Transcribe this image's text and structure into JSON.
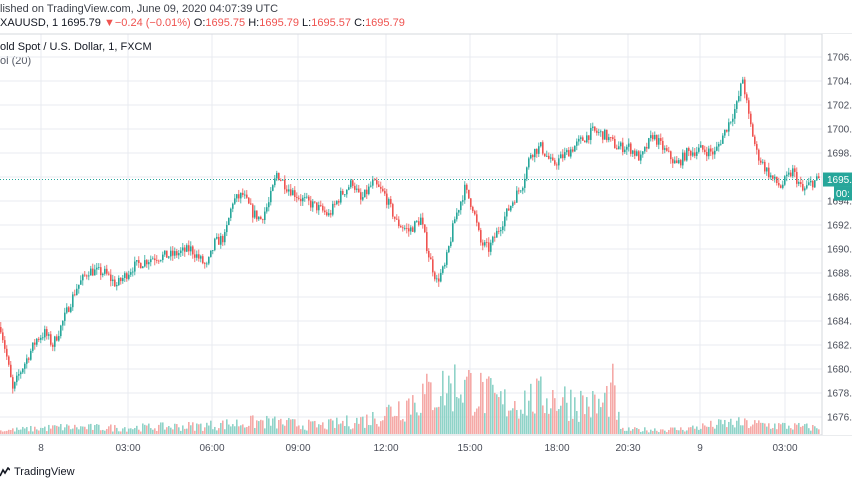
{
  "header": {
    "publish_text": "lished on TradingView.com, June 09, 2020 04:07:39 UTC",
    "symbol": "XAUUSD, 1",
    "price": "1695.79",
    "change_arrow": "▼",
    "change": "−0.24 (−0.01%)",
    "open_label": "O:",
    "open": "1695.75",
    "high_label": "H:",
    "high": "1695.79",
    "low_label": "L:",
    "low": "1695.57",
    "close_label": "C:",
    "close": "1695.79",
    "title": "old Spot / U.S. Dollar, 1, FXCM",
    "volume_label": "ol (20)"
  },
  "footer": {
    "brand": "TradingView",
    "logo_icon": "tradingview-logo-icon"
  },
  "colors": {
    "up": "#26a69a",
    "down": "#ef5350",
    "up_volume": "#8fd3c8",
    "down_volume": "#f5a9a7",
    "grid": "#e9ebf0",
    "price_line": "#26a69a"
  },
  "chart_data": {
    "type": "candlestick",
    "symbol": "XAUUSD",
    "interval": "1",
    "x_tick_labels": [
      "8",
      "03:00",
      "06:00",
      "09:00",
      "12:00",
      "15:00",
      "18:00",
      "20:30",
      "9",
      "03:00"
    ],
    "y_tick_labels": [
      "1676.00",
      "1678.00",
      "1680.00",
      "1682.00",
      "1684.00",
      "1686.00",
      "1688.00",
      "1690.00",
      "1692.00",
      "1694.00",
      "1696.00",
      "1698.00",
      "1700.00",
      "1702.00",
      "1704.00",
      "1706.00"
    ],
    "y_tick_values": [
      1676,
      1678,
      1680,
      1682,
      1684,
      1686,
      1688,
      1690,
      1692,
      1694,
      1696,
      1698,
      1700,
      1702,
      1704,
      1706
    ],
    "ylim": [
      1675,
      1707
    ],
    "last_price": 1695.79,
    "last_price_label": "1695.",
    "countdown_label": "00:",
    "price_path": [
      {
        "t": 0,
        "p": 1683.5
      },
      {
        "t": 3,
        "p": 1681.0
      },
      {
        "t": 6,
        "p": 1678.2
      },
      {
        "t": 9,
        "p": 1679.5
      },
      {
        "t": 12,
        "p": 1680.5
      },
      {
        "t": 18,
        "p": 1682.5
      },
      {
        "t": 22,
        "p": 1683.0
      },
      {
        "t": 26,
        "p": 1682.0
      },
      {
        "t": 30,
        "p": 1683.5
      },
      {
        "t": 34,
        "p": 1685.2
      },
      {
        "t": 38,
        "p": 1686.8
      },
      {
        "t": 44,
        "p": 1688.2
      },
      {
        "t": 52,
        "p": 1688.0
      },
      {
        "t": 58,
        "p": 1687.0
      },
      {
        "t": 66,
        "p": 1688.5
      },
      {
        "t": 76,
        "p": 1689.3
      },
      {
        "t": 86,
        "p": 1689.5
      },
      {
        "t": 95,
        "p": 1690.0
      },
      {
        "t": 103,
        "p": 1688.5
      },
      {
        "t": 107,
        "p": 1690.5
      },
      {
        "t": 112,
        "p": 1691.0
      },
      {
        "t": 116,
        "p": 1694.0
      },
      {
        "t": 121,
        "p": 1694.5
      },
      {
        "t": 126,
        "p": 1693.0
      },
      {
        "t": 130,
        "p": 1692.5
      },
      {
        "t": 134,
        "p": 1693.8
      },
      {
        "t": 138,
        "p": 1696.3
      },
      {
        "t": 143,
        "p": 1695.2
      },
      {
        "t": 150,
        "p": 1694.2
      },
      {
        "t": 158,
        "p": 1693.5
      },
      {
        "t": 164,
        "p": 1692.8
      },
      {
        "t": 170,
        "p": 1694.5
      },
      {
        "t": 176,
        "p": 1695.6
      },
      {
        "t": 180,
        "p": 1694.0
      },
      {
        "t": 186,
        "p": 1695.5
      },
      {
        "t": 192,
        "p": 1694.5
      },
      {
        "t": 198,
        "p": 1692.2
      },
      {
        "t": 204,
        "p": 1691.5
      },
      {
        "t": 210,
        "p": 1692.5
      },
      {
        "t": 214,
        "p": 1689.5
      },
      {
        "t": 218,
        "p": 1687.3
      },
      {
        "t": 222,
        "p": 1688.5
      },
      {
        "t": 227,
        "p": 1692.5
      },
      {
        "t": 232,
        "p": 1695.0
      },
      {
        "t": 236,
        "p": 1693.5
      },
      {
        "t": 240,
        "p": 1690.5
      },
      {
        "t": 244,
        "p": 1690.0
      },
      {
        "t": 250,
        "p": 1692.0
      },
      {
        "t": 256,
        "p": 1694.0
      },
      {
        "t": 261,
        "p": 1695.5
      },
      {
        "t": 265,
        "p": 1698.0
      },
      {
        "t": 270,
        "p": 1698.5
      },
      {
        "t": 276,
        "p": 1697.0
      },
      {
        "t": 283,
        "p": 1698.0
      },
      {
        "t": 290,
        "p": 1699.0
      },
      {
        "t": 296,
        "p": 1699.8
      },
      {
        "t": 302,
        "p": 1699.5
      },
      {
        "t": 308,
        "p": 1698.5
      },
      {
        "t": 314,
        "p": 1698.5
      },
      {
        "t": 320,
        "p": 1697.5
      },
      {
        "t": 326,
        "p": 1699.5
      },
      {
        "t": 332,
        "p": 1698.2
      },
      {
        "t": 338,
        "p": 1697.0
      },
      {
        "t": 343,
        "p": 1698.0
      },
      {
        "t": 350,
        "p": 1698.3
      },
      {
        "t": 357,
        "p": 1698.0
      },
      {
        "t": 364,
        "p": 1700.5
      },
      {
        "t": 368,
        "p": 1702.0
      },
      {
        "t": 371,
        "p": 1704.2
      },
      {
        "t": 374,
        "p": 1701.0
      },
      {
        "t": 378,
        "p": 1698.0
      },
      {
        "t": 382,
        "p": 1696.8
      },
      {
        "t": 386,
        "p": 1695.8
      },
      {
        "t": 390,
        "p": 1695.2
      },
      {
        "t": 396,
        "p": 1696.5
      },
      {
        "t": 401,
        "p": 1694.8
      },
      {
        "t": 405,
        "p": 1695.5
      },
      {
        "t": 409,
        "p": 1695.8
      }
    ],
    "volume_envelope": [
      {
        "t": 0,
        "v": 0.05
      },
      {
        "t": 30,
        "v": 0.1
      },
      {
        "t": 60,
        "v": 0.09
      },
      {
        "t": 100,
        "v": 0.12
      },
      {
        "t": 130,
        "v": 0.18
      },
      {
        "t": 160,
        "v": 0.12
      },
      {
        "t": 185,
        "v": 0.22
      },
      {
        "t": 210,
        "v": 0.55
      },
      {
        "t": 230,
        "v": 0.75
      },
      {
        "t": 250,
        "v": 0.45
      },
      {
        "t": 275,
        "v": 0.55
      },
      {
        "t": 300,
        "v": 0.4
      },
      {
        "t": 306,
        "v": 0.65
      },
      {
        "t": 310,
        "v": 0.06
      },
      {
        "t": 340,
        "v": 0.07
      },
      {
        "t": 365,
        "v": 0.16
      },
      {
        "t": 380,
        "v": 0.14
      },
      {
        "t": 409,
        "v": 0.09
      }
    ]
  }
}
